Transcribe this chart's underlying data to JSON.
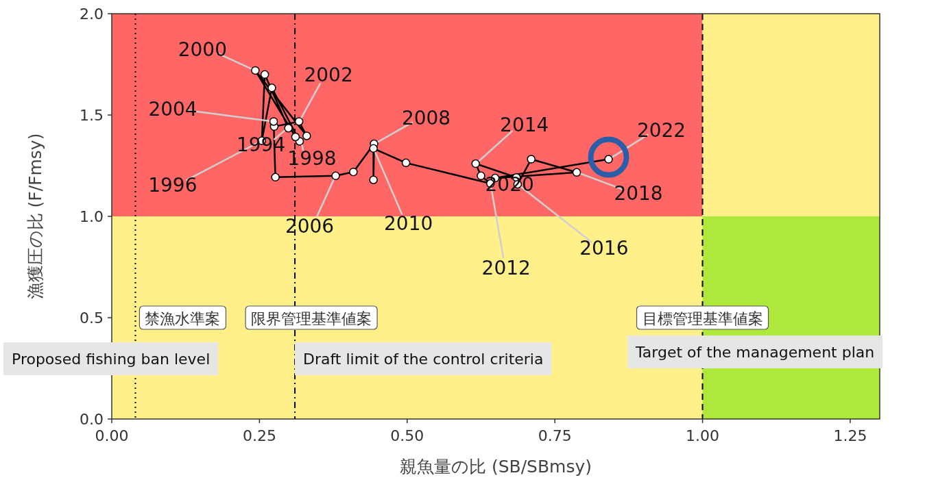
{
  "chart_data": {
    "type": "line",
    "xlabel": "親魚量の比 (SB/SBmsy)",
    "ylabel": "漁獲圧の比 (F/Fmsy)",
    "xlim": [
      0,
      1.3
    ],
    "ylim": [
      0,
      2
    ],
    "xticks": [
      {
        "value": 0,
        "label": "0.00"
      },
      {
        "value": 0.25,
        "label": "0.25"
      },
      {
        "value": 0.5,
        "label": "0.50"
      },
      {
        "value": 0.75,
        "label": "0.75"
      },
      {
        "value": 1,
        "label": "1.00"
      },
      {
        "value": 1.25,
        "label": "1.25"
      }
    ],
    "yticks": [
      {
        "value": 0,
        "label": "0.0"
      },
      {
        "value": 0.5,
        "label": "0.5"
      },
      {
        "value": 1,
        "label": "1.0"
      },
      {
        "value": 1.5,
        "label": "1.5"
      },
      {
        "value": 2,
        "label": "2.0"
      }
    ],
    "grid": false,
    "marker": "circle",
    "line_style": "solid",
    "bands": [
      {
        "axis": "y",
        "from": 0,
        "to": 1,
        "color": "#fff08a"
      },
      {
        "axis": "x",
        "from": 1,
        "to": 1.3,
        "color": "#aee83a"
      }
    ],
    "ref_lines": [
      {
        "axis": "x",
        "value": 0.04,
        "label": "禁漁水準案",
        "line_style": "dotted"
      },
      {
        "axis": "x",
        "value": 0.31,
        "label": "限界管理基準値案",
        "line_style": "dashdot"
      },
      {
        "axis": "x",
        "value": 1,
        "label": "目標管理基準値案",
        "line_style": "dashed"
      }
    ],
    "series": [
      {
        "color": "#000000",
        "x": [
          0.299,
          0.259,
          0.254,
          0.271,
          0.318,
          0.311,
          0.243,
          0.33,
          0.317,
          0.275,
          0.274,
          0.277,
          0.379,
          0.409,
          0.444,
          0.443,
          0.443,
          0.498,
          0.641,
          0.625,
          0.616,
          0.685,
          0.687,
          0.71,
          0.787,
          0.649,
          0.841
        ],
        "values": [
          1.435,
          1.7,
          1.373,
          1.634,
          1.37,
          1.392,
          1.72,
          1.397,
          1.468,
          1.443,
          1.468,
          1.193,
          1.2,
          1.219,
          1.358,
          1.18,
          1.335,
          1.264,
          1.162,
          1.2,
          1.26,
          1.192,
          1.158,
          1.282,
          1.217,
          1.189,
          1.282
        ]
      }
    ],
    "annotations": [
      {
        "text": "2000",
        "x": 0.243,
        "y": 1.72
      },
      {
        "text": "2002",
        "x": 0.317,
        "y": 1.468
      },
      {
        "text": "2004",
        "x": 0.274,
        "y": 1.468
      },
      {
        "text": "1994",
        "x": 0.299,
        "y": 1.435
      },
      {
        "text": "1996",
        "x": 0.254,
        "y": 1.373
      },
      {
        "text": "1998",
        "x": 0.318,
        "y": 1.37
      },
      {
        "text": "2006",
        "x": 0.379,
        "y": 1.2
      },
      {
        "text": "2008",
        "x": 0.444,
        "y": 1.358
      },
      {
        "text": "2010",
        "x": 0.443,
        "y": 1.335
      },
      {
        "text": "2014",
        "x": 0.616,
        "y": 1.26
      },
      {
        "text": "2012",
        "x": 0.641,
        "y": 1.162
      },
      {
        "text": "2020",
        "x": 0.685,
        "y": 1.192
      },
      {
        "text": "2016",
        "x": 0.687,
        "y": 1.158
      },
      {
        "text": "2018",
        "x": 0.787,
        "y": 1.217
      },
      {
        "text": "2022",
        "x": 0.841,
        "y": 1.282
      },
      "Proposed fishing ban level",
      "Draft limit of the control criteria",
      "Target of the management plan"
    ]
  }
}
